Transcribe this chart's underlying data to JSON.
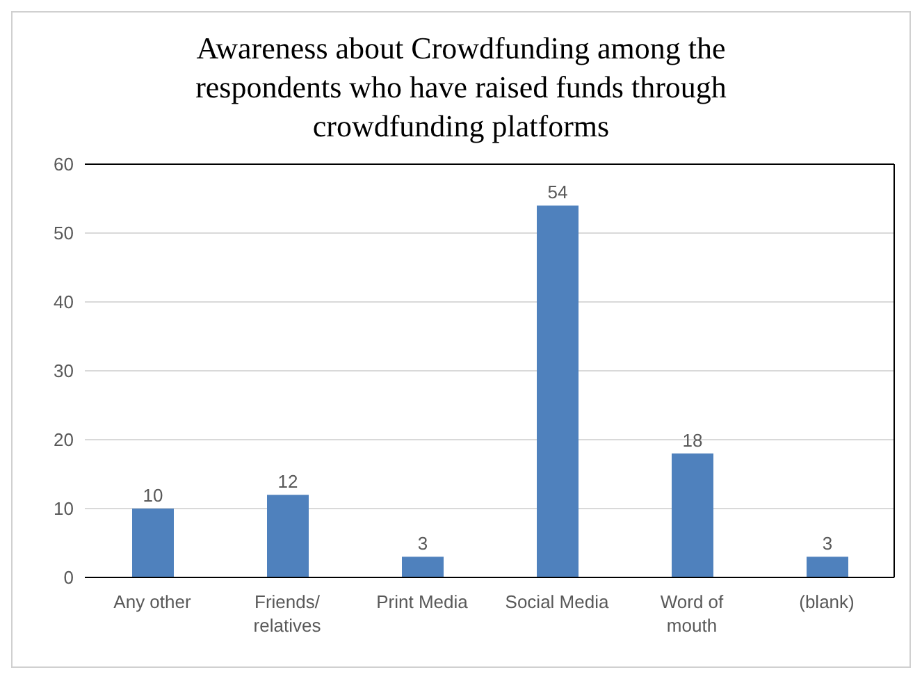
{
  "chart_data": {
    "type": "bar",
    "title": "Awareness about Crowdfunding among the respondents who have raised funds through crowdfunding platforms",
    "categories": [
      "Any other",
      "Friends/ relatives",
      "Print Media",
      "Social Media",
      "Word of mouth",
      "(blank)"
    ],
    "values": [
      10,
      12,
      3,
      54,
      18,
      3
    ],
    "color": "#4f81bd",
    "ylim": [
      0,
      60
    ],
    "yticks": [
      0,
      10,
      20,
      30,
      40,
      50,
      60
    ],
    "grid": "y",
    "data_labels": true
  }
}
